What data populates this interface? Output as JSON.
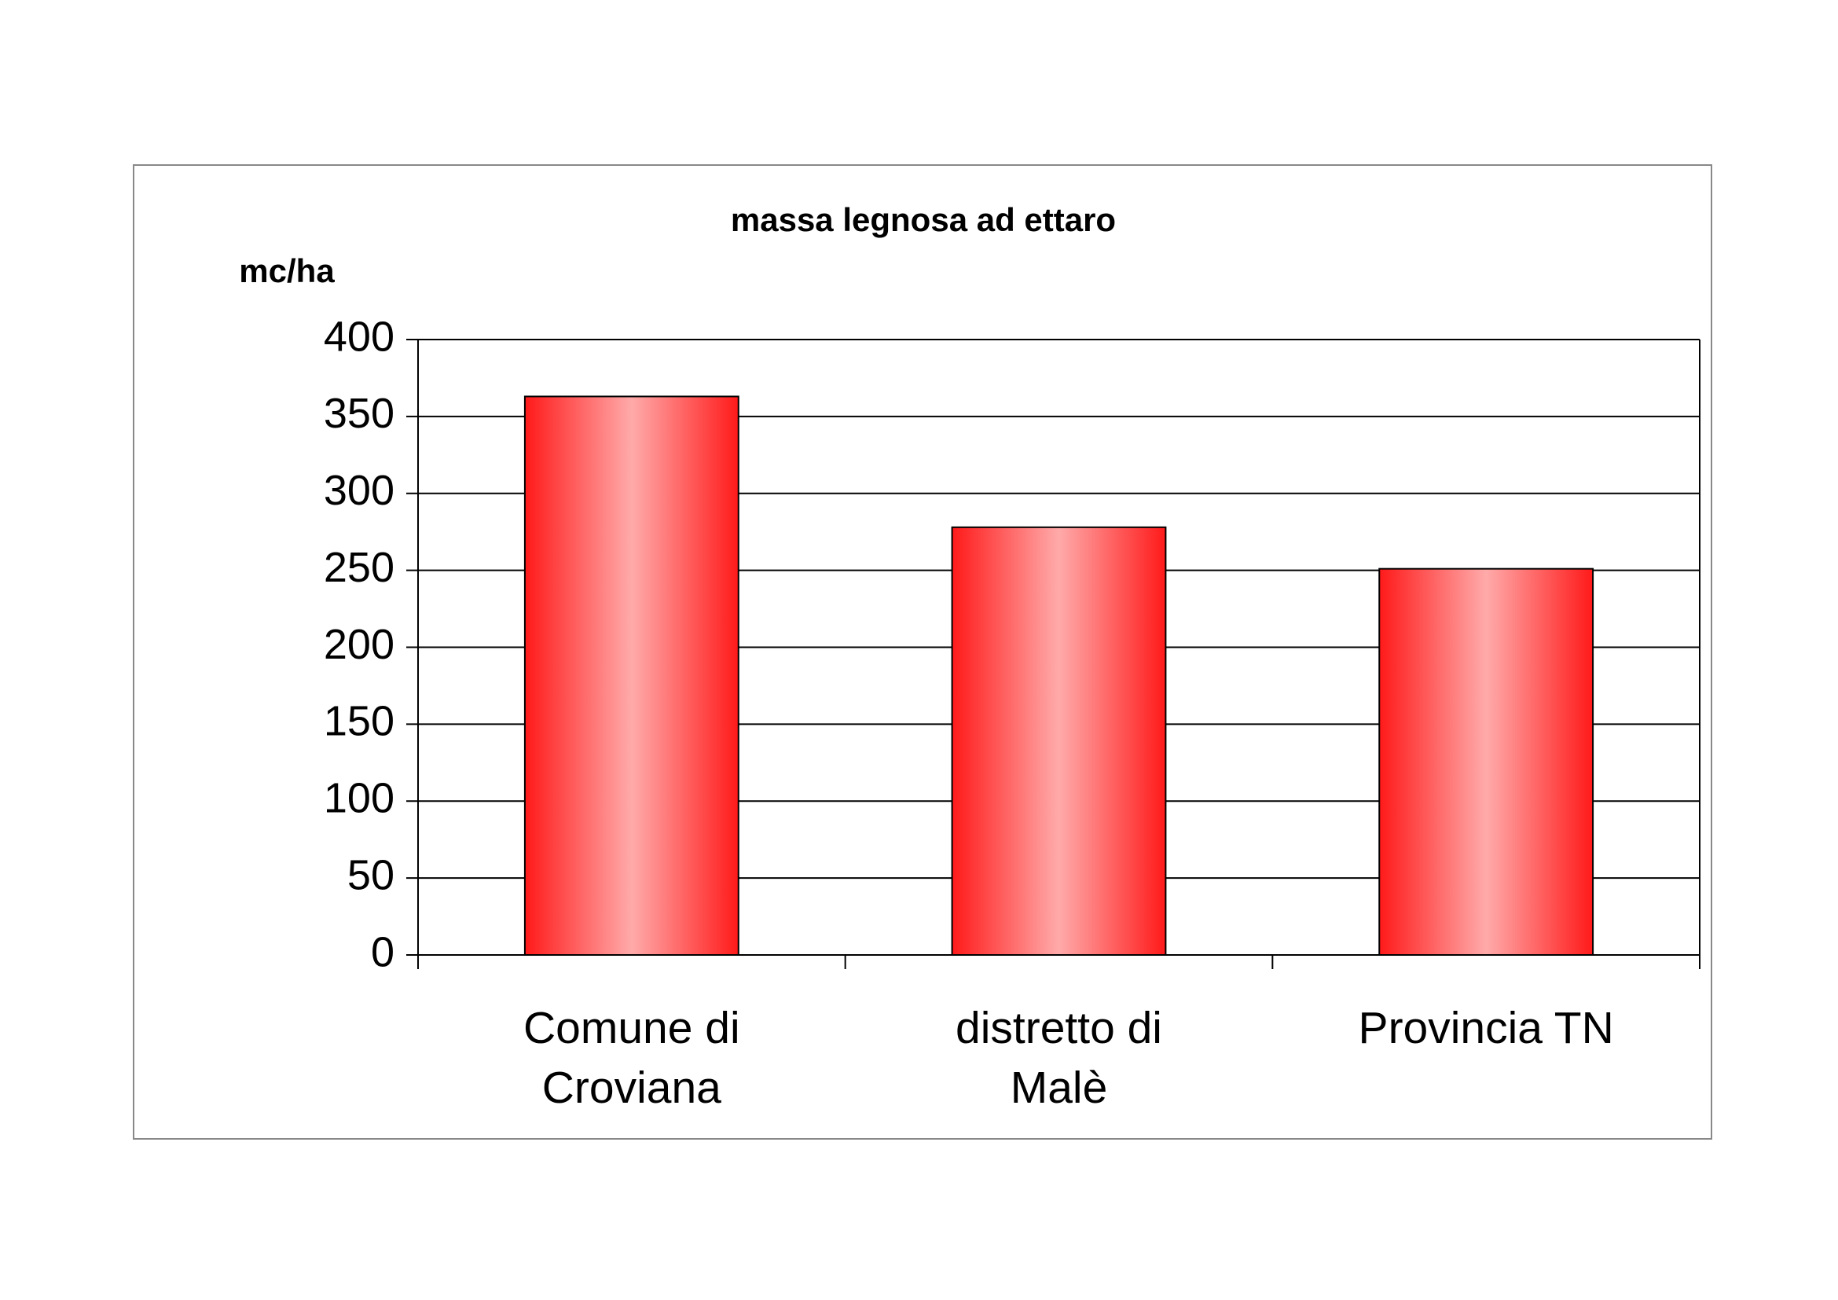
{
  "chart_data": {
    "type": "bar",
    "title": "massa legnosa ad ettaro",
    "y_axis_label": "mc/ha",
    "categories": [
      "Comune di Croviana",
      "distretto di Malè",
      "Provincia TN"
    ],
    "values": [
      363,
      278,
      251
    ],
    "color": "#ff1a1a",
    "ylim": [
      0,
      400
    ],
    "yticks": [
      0,
      50,
      100,
      150,
      200,
      250,
      300,
      350,
      400
    ],
    "grid": true
  }
}
